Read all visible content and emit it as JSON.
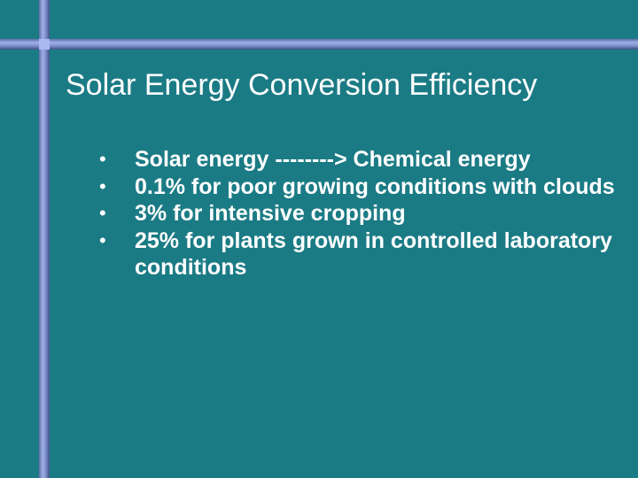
{
  "slide": {
    "title": "Solar Energy Conversion Efficiency",
    "bullet_symbol": "•",
    "bullets": [
      "Solar energy --------> Chemical energy",
      "0.1% for poor growing conditions with clouds",
      "3% for intensive cropping",
      "25% for plants grown in controlled laboratory conditions"
    ]
  },
  "colors": {
    "background": "#1b7b85",
    "accent_bar": "#8a9bd8",
    "text": "#ffffff"
  }
}
